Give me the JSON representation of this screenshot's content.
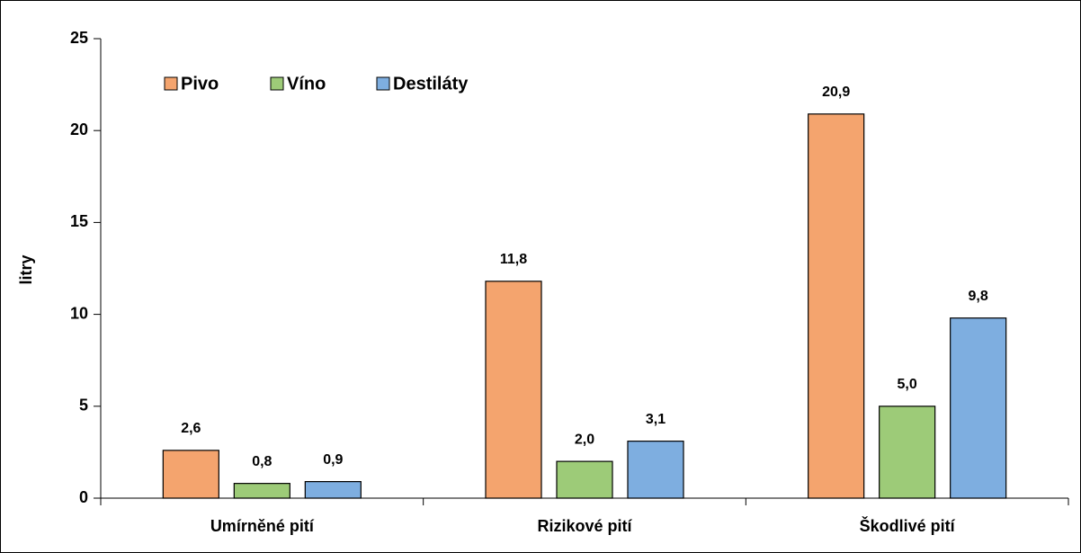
{
  "chart_data": {
    "type": "bar",
    "categories": [
      "Umírněné pití",
      "Rizikové pití",
      "Škodlivé pití"
    ],
    "series": [
      {
        "name": "Pivo",
        "color": "#f4a46e",
        "values": [
          2.6,
          11.8,
          20.9
        ],
        "value_labels": [
          "2,6",
          "11,8",
          "20,9"
        ]
      },
      {
        "name": "Víno",
        "color": "#9dcb78",
        "values": [
          0.8,
          2.0,
          5.0
        ],
        "value_labels": [
          "0,8",
          "2,0",
          "5,0"
        ]
      },
      {
        "name": "Destiláty",
        "color": "#7eaee0",
        "values": [
          0.9,
          3.1,
          9.8
        ],
        "value_labels": [
          "0,9",
          "3,1",
          "9,8"
        ]
      }
    ],
    "ylabel": "litry",
    "ylim": [
      0,
      25
    ],
    "yticks": [
      0,
      5,
      10,
      15,
      20,
      25
    ],
    "grid": false,
    "legend": "upper left"
  }
}
